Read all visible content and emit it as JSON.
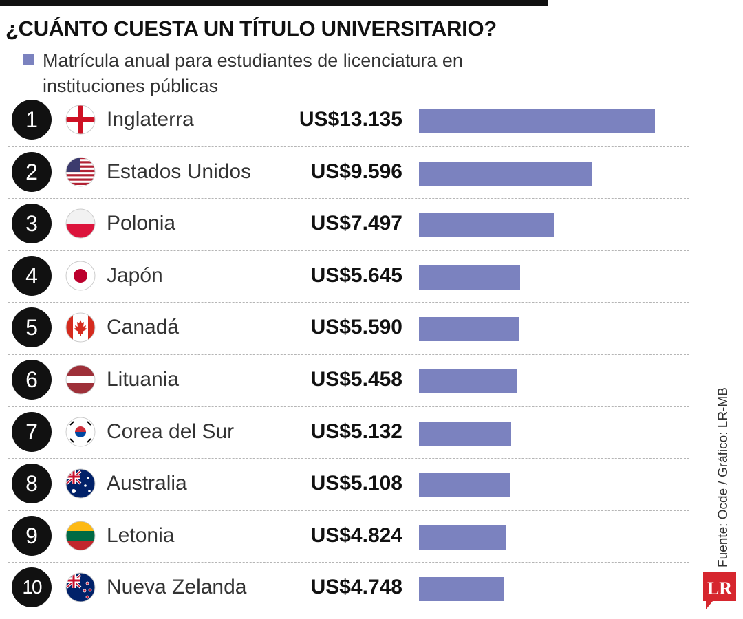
{
  "title": "¿CUÁNTO CUESTA UN TÍTULO UNIVERSITARIO?",
  "legend": {
    "label": "Matrícula anual para estudiantes de licenciatura en instituciones públicas",
    "color": "#7b82bf"
  },
  "source": "Fuente: Ocde / Gráfico: LR-MB",
  "logo_text": "LR",
  "chart_data": {
    "type": "bar",
    "orientation": "horizontal",
    "series": [
      {
        "name": "Matrícula anual para estudiantes de licenciatura en instituciones públicas",
        "color": "#7b82bf",
        "values": [
          13135,
          9596,
          7497,
          5645,
          5590,
          5458,
          5132,
          5108,
          4824,
          4748
        ]
      }
    ],
    "categories": [
      "Inglaterra",
      "Estados Unidos",
      "Polonia",
      "Japón",
      "Canadá",
      "Lituania",
      "Corea del Sur",
      "Australia",
      "Letonia",
      "Nueva Zelanda"
    ],
    "ranks": [
      "1",
      "2",
      "3",
      "4",
      "5",
      "6",
      "7",
      "8",
      "9",
      "10"
    ],
    "value_labels": [
      "US$13.135",
      "US$9.596",
      "US$7.497",
      "US$5.645",
      "US$5.590",
      "US$5.458",
      "US$5.132",
      "US$5.108",
      "US$4.824",
      "US$4.748"
    ],
    "flag_icons": [
      "england-flag-icon",
      "usa-flag-icon",
      "poland-flag-icon",
      "japan-flag-icon",
      "canada-flag-icon",
      "lithuania-flag-icon",
      "south-korea-flag-icon",
      "australia-flag-icon",
      "latvia-flag-icon",
      "new-zealand-flag-icon"
    ],
    "xlim": [
      0,
      13135
    ],
    "grid": false,
    "legend_position": "top-left"
  }
}
